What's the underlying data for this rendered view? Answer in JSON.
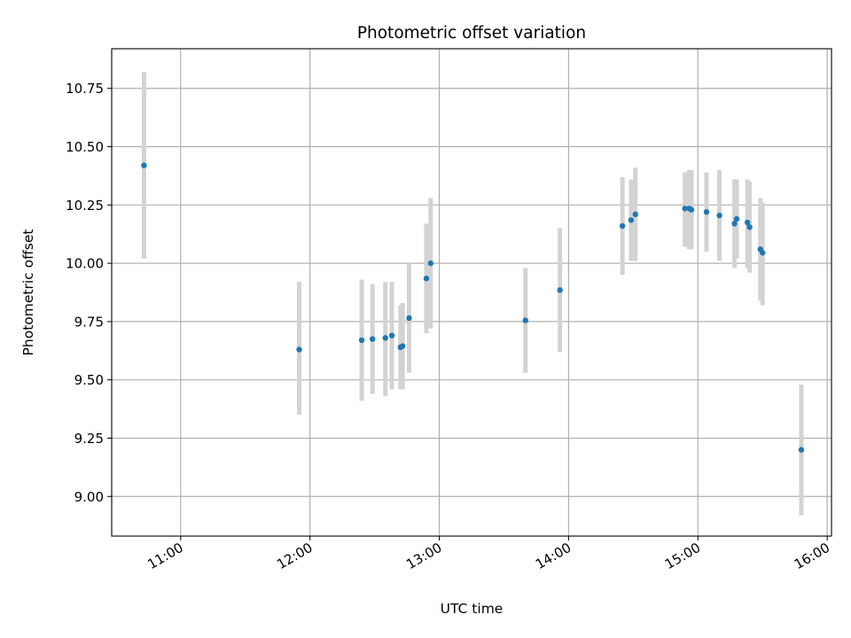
{
  "chart_data": {
    "type": "scatter",
    "title": "Photometric offset variation",
    "xlabel": "UTC time",
    "ylabel": "Photometric offset",
    "x_unit": "time of day (UTC)",
    "xlim": [
      "10:28",
      "16:02"
    ],
    "ylim": [
      8.83,
      10.92
    ],
    "x_ticks": [
      "11:00",
      "12:00",
      "13:00",
      "14:00",
      "15:00",
      "16:00"
    ],
    "y_ticks": [
      "9.00",
      "9.25",
      "9.50",
      "9.75",
      "10.00",
      "10.25",
      "10.50",
      "10.75"
    ],
    "grid": true,
    "legend": "none",
    "colors": {
      "points": "#1f77b4",
      "errorbars": "#d3d3d3",
      "grid": "#b0b0b0"
    },
    "points": [
      {
        "x": "10:43",
        "y": 10.42,
        "yerr_low": 10.02,
        "yerr_high": 10.82
      },
      {
        "x": "11:55",
        "y": 9.63,
        "yerr_low": 9.35,
        "yerr_high": 9.92
      },
      {
        "x": "12:24",
        "y": 9.67,
        "yerr_low": 9.41,
        "yerr_high": 9.93
      },
      {
        "x": "12:29",
        "y": 9.675,
        "yerr_low": 9.44,
        "yerr_high": 9.91
      },
      {
        "x": "12:35",
        "y": 9.68,
        "yerr_low": 9.43,
        "yerr_high": 9.92
      },
      {
        "x": "12:38",
        "y": 9.69,
        "yerr_low": 9.46,
        "yerr_high": 9.92
      },
      {
        "x": "12:42",
        "y": 9.64,
        "yerr_low": 9.46,
        "yerr_high": 9.82
      },
      {
        "x": "12:43",
        "y": 9.645,
        "yerr_low": 9.46,
        "yerr_high": 9.83
      },
      {
        "x": "12:46",
        "y": 9.765,
        "yerr_low": 9.53,
        "yerr_high": 10.0
      },
      {
        "x": "12:54",
        "y": 9.935,
        "yerr_low": 9.7,
        "yerr_high": 10.17
      },
      {
        "x": "12:56",
        "y": 10.0,
        "yerr_low": 9.72,
        "yerr_high": 10.28
      },
      {
        "x": "13:40",
        "y": 9.755,
        "yerr_low": 9.53,
        "yerr_high": 9.98
      },
      {
        "x": "13:56",
        "y": 9.885,
        "yerr_low": 9.62,
        "yerr_high": 10.15
      },
      {
        "x": "14:25",
        "y": 10.16,
        "yerr_low": 9.95,
        "yerr_high": 10.37
      },
      {
        "x": "14:29",
        "y": 10.185,
        "yerr_low": 10.01,
        "yerr_high": 10.36
      },
      {
        "x": "14:31",
        "y": 10.21,
        "yerr_low": 10.01,
        "yerr_high": 10.41
      },
      {
        "x": "14:54",
        "y": 10.235,
        "yerr_low": 10.07,
        "yerr_high": 10.39
      },
      {
        "x": "14:56",
        "y": 10.235,
        "yerr_low": 10.06,
        "yerr_high": 10.4
      },
      {
        "x": "14:57",
        "y": 10.23,
        "yerr_low": 10.06,
        "yerr_high": 10.4
      },
      {
        "x": "15:04",
        "y": 10.22,
        "yerr_low": 10.05,
        "yerr_high": 10.39
      },
      {
        "x": "15:10",
        "y": 10.205,
        "yerr_low": 10.01,
        "yerr_high": 10.4
      },
      {
        "x": "15:17",
        "y": 10.17,
        "yerr_low": 9.98,
        "yerr_high": 10.36
      },
      {
        "x": "15:18",
        "y": 10.19,
        "yerr_low": 10.02,
        "yerr_high": 10.36
      },
      {
        "x": "15:23",
        "y": 10.175,
        "yerr_low": 9.98,
        "yerr_high": 10.36
      },
      {
        "x": "15:24",
        "y": 10.155,
        "yerr_low": 9.96,
        "yerr_high": 10.35
      },
      {
        "x": "15:29",
        "y": 10.06,
        "yerr_low": 9.84,
        "yerr_high": 10.28
      },
      {
        "x": "15:30",
        "y": 10.045,
        "yerr_low": 9.82,
        "yerr_high": 10.26
      },
      {
        "x": "15:48",
        "y": 9.2,
        "yerr_low": 8.92,
        "yerr_high": 9.48
      }
    ]
  }
}
